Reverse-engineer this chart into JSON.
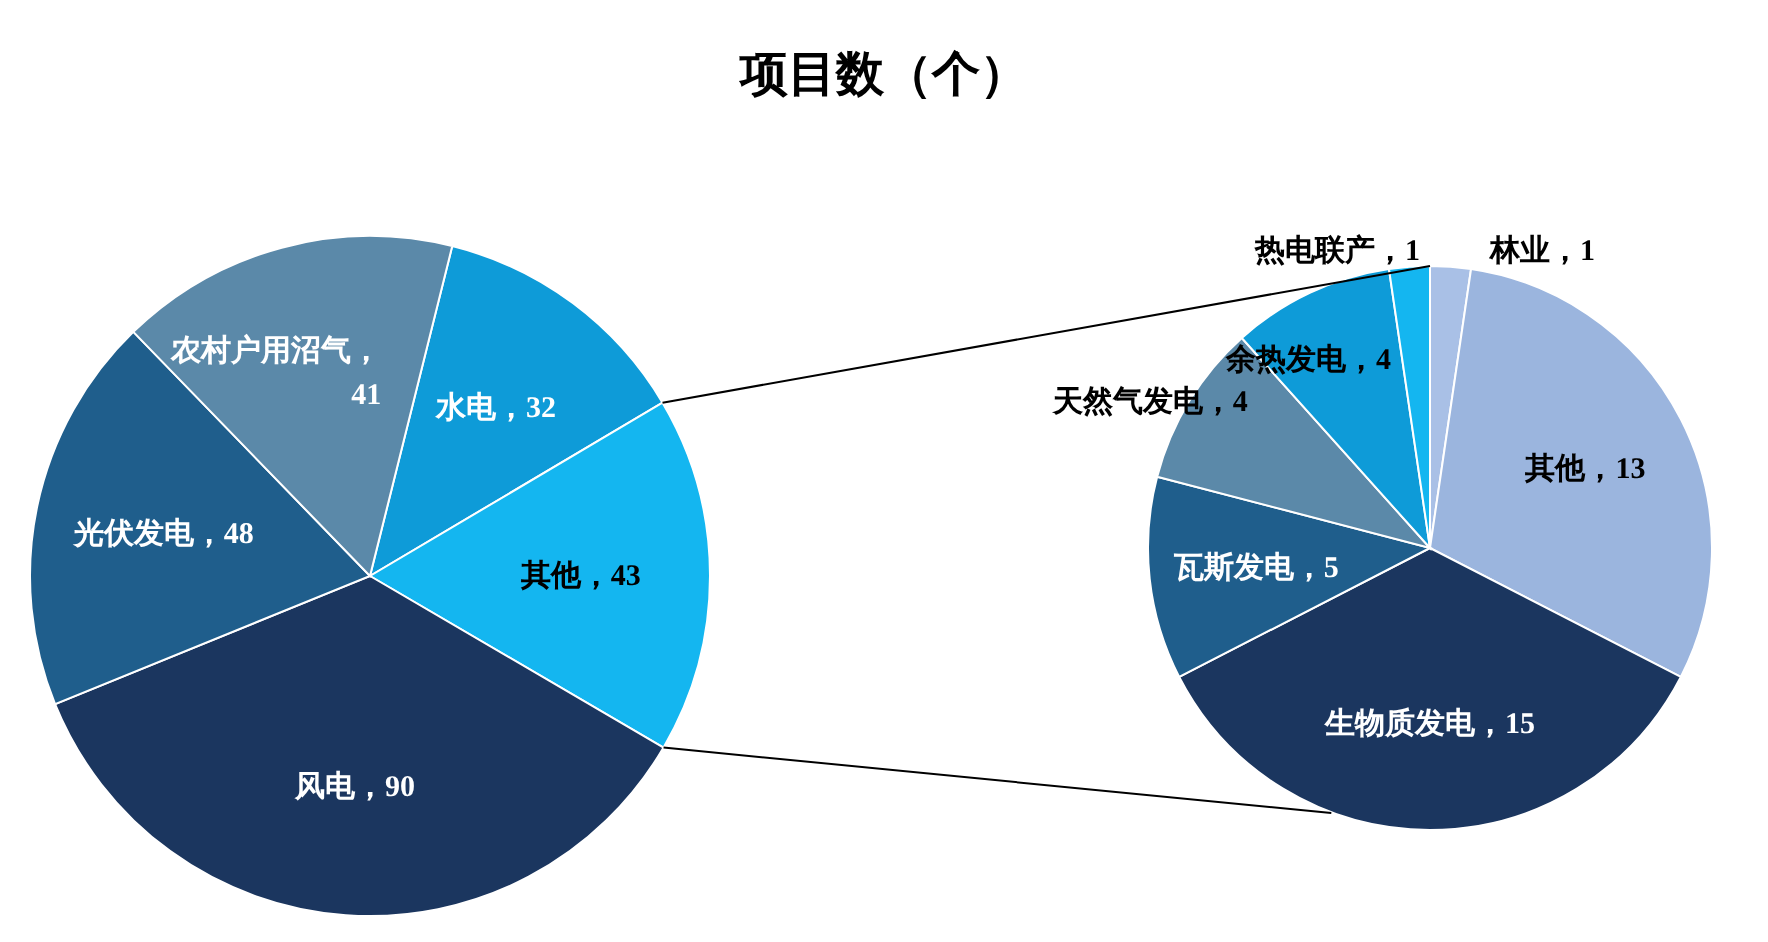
{
  "chart_data": [
    {
      "type": "pie",
      "title": "项目数（个）",
      "categories": [
        "水电",
        "其他",
        "风电",
        "光伏发电",
        "农村户用沼气"
      ],
      "values": [
        32,
        43,
        90,
        48,
        41
      ],
      "colors": [
        "#0e9bd8",
        "#14b6f0",
        "#1b365f",
        "#1f5e8c",
        "#5b89a9"
      ],
      "value_labels": [
        "，32",
        "，43",
        "，90",
        "，48",
        "，\n41"
      ],
      "legend": false
    },
    {
      "type": "pie",
      "categories": [
        "林业",
        "其他",
        "生物质发电",
        "瓦斯发电",
        "天然气发电",
        "余热发电",
        "热电联产"
      ],
      "values": [
        1,
        13,
        15,
        5,
        4,
        4,
        1
      ],
      "colors": [
        "#a9c0e6",
        "#9bb5de",
        "#1b365f",
        "#1f5e8c",
        "#5b89a9",
        "#0e9bd8",
        "#14b6f0"
      ],
      "value_labels": [
        "，1",
        "，13",
        "，15",
        "，5",
        "，4",
        "，4",
        "，1"
      ],
      "legend": false
    }
  ]
}
